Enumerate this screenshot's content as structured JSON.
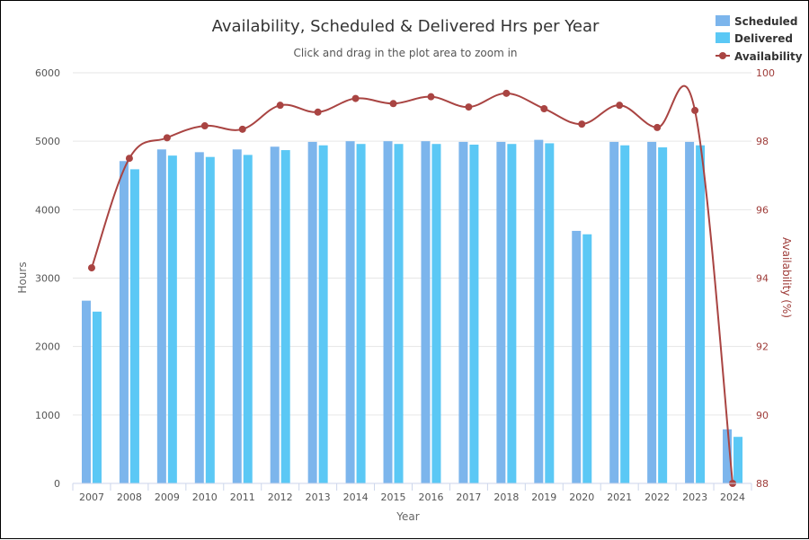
{
  "chart_data": {
    "type": "bar+line",
    "title": "Availability, Scheduled & Delivered Hrs per Year",
    "subtitle": "Click and drag in the plot area to zoom in",
    "xlabel": "Year",
    "ylabel": "Hours",
    "y2label": "Availability (%)",
    "ylim": [
      0,
      6000
    ],
    "y2lim": [
      88,
      100
    ],
    "yticks": [
      "0",
      "1000",
      "2000",
      "3000",
      "4000",
      "5000",
      "6000"
    ],
    "y2ticks": [
      "88",
      "90",
      "92",
      "94",
      "96",
      "98",
      "100"
    ],
    "categories": [
      "2007",
      "2008",
      "2009",
      "2010",
      "2011",
      "2012",
      "2013",
      "2014",
      "2015",
      "2016",
      "2017",
      "2018",
      "2019",
      "2020",
      "2021",
      "2022",
      "2023",
      "2024"
    ],
    "series": [
      {
        "name": "Scheduled",
        "type": "bar",
        "axis": "left",
        "color": "#7cb5ec",
        "values": [
          2670,
          4710,
          4880,
          4840,
          4880,
          4920,
          4990,
          5000,
          5000,
          5000,
          4990,
          4990,
          5020,
          3690,
          4990,
          4990,
          4990,
          790
        ]
      },
      {
        "name": "Delivered",
        "type": "bar",
        "axis": "left",
        "color": "#5bc8f5",
        "values": [
          2510,
          4590,
          4790,
          4770,
          4800,
          4870,
          4940,
          4960,
          4960,
          4960,
          4950,
          4960,
          4970,
          3640,
          4940,
          4910,
          4940,
          680
        ]
      },
      {
        "name": "Availability",
        "type": "line",
        "axis": "right",
        "color": "#a94442",
        "values": [
          94.3,
          97.5,
          98.1,
          98.45,
          98.35,
          99.05,
          98.85,
          99.25,
          99.1,
          99.3,
          99.0,
          99.4,
          98.95,
          98.5,
          99.05,
          98.4,
          98.9,
          88.0
        ]
      }
    ],
    "legend_position": "top-right"
  }
}
